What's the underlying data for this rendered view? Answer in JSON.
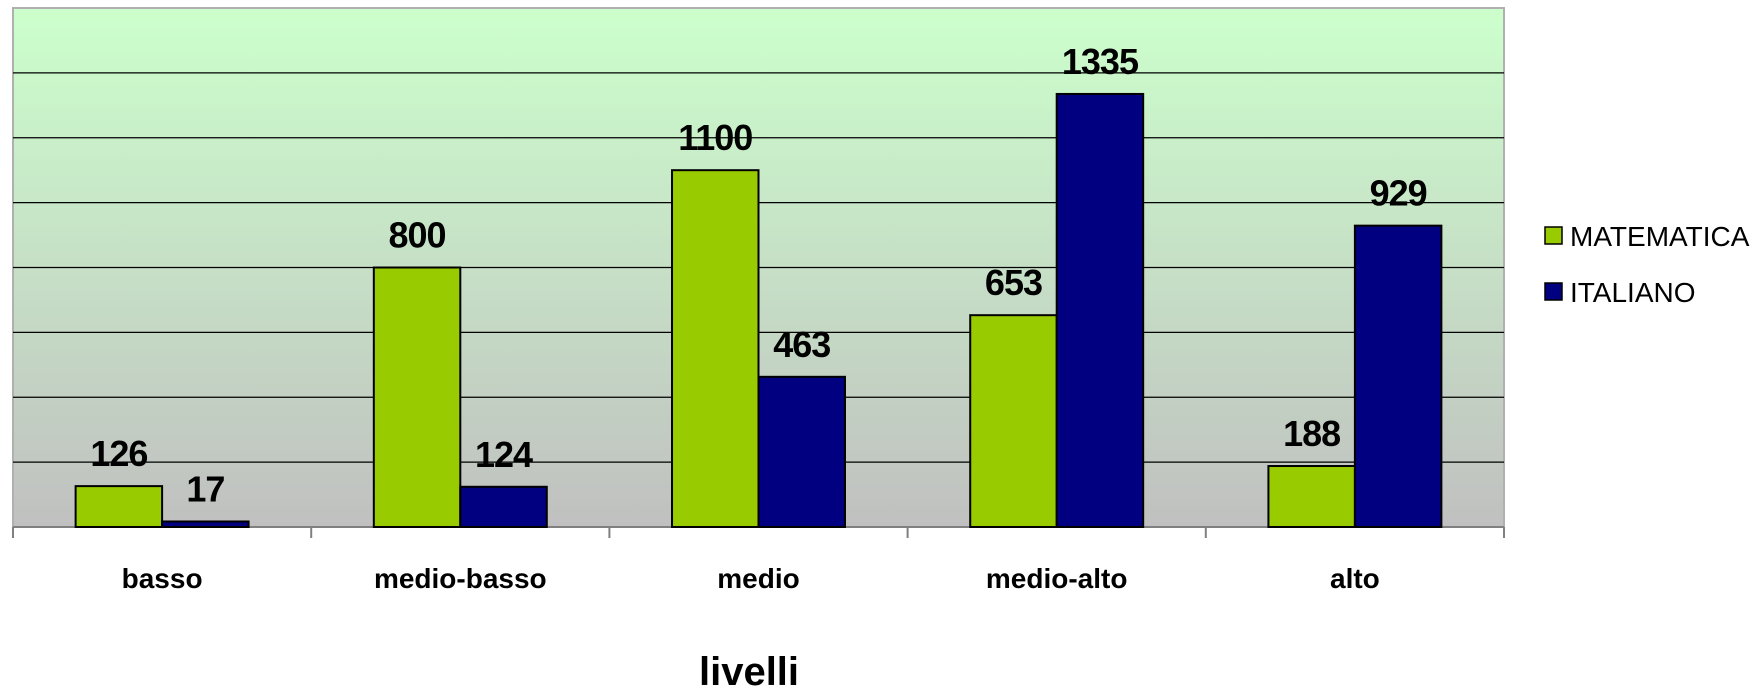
{
  "chart_data": {
    "type": "bar",
    "categories": [
      "basso",
      "medio-basso",
      "medio",
      "medio-alto",
      "alto"
    ],
    "series": [
      {
        "name": "MATEMATICA",
        "values": [
          126,
          800,
          1100,
          653,
          188
        ],
        "color": "#99CC00"
      },
      {
        "name": "ITALIANO",
        "values": [
          17,
          124,
          463,
          1335,
          929
        ],
        "color": "#000080"
      }
    ],
    "xlabel": "livelli",
    "ylabel": "",
    "ylim": [
      0,
      1600
    ],
    "y_gridline_step": 200,
    "grid": true,
    "legend_position": "right",
    "plot_background": {
      "top": "#CCFFCC",
      "bottom": "#C0C0C0"
    }
  }
}
